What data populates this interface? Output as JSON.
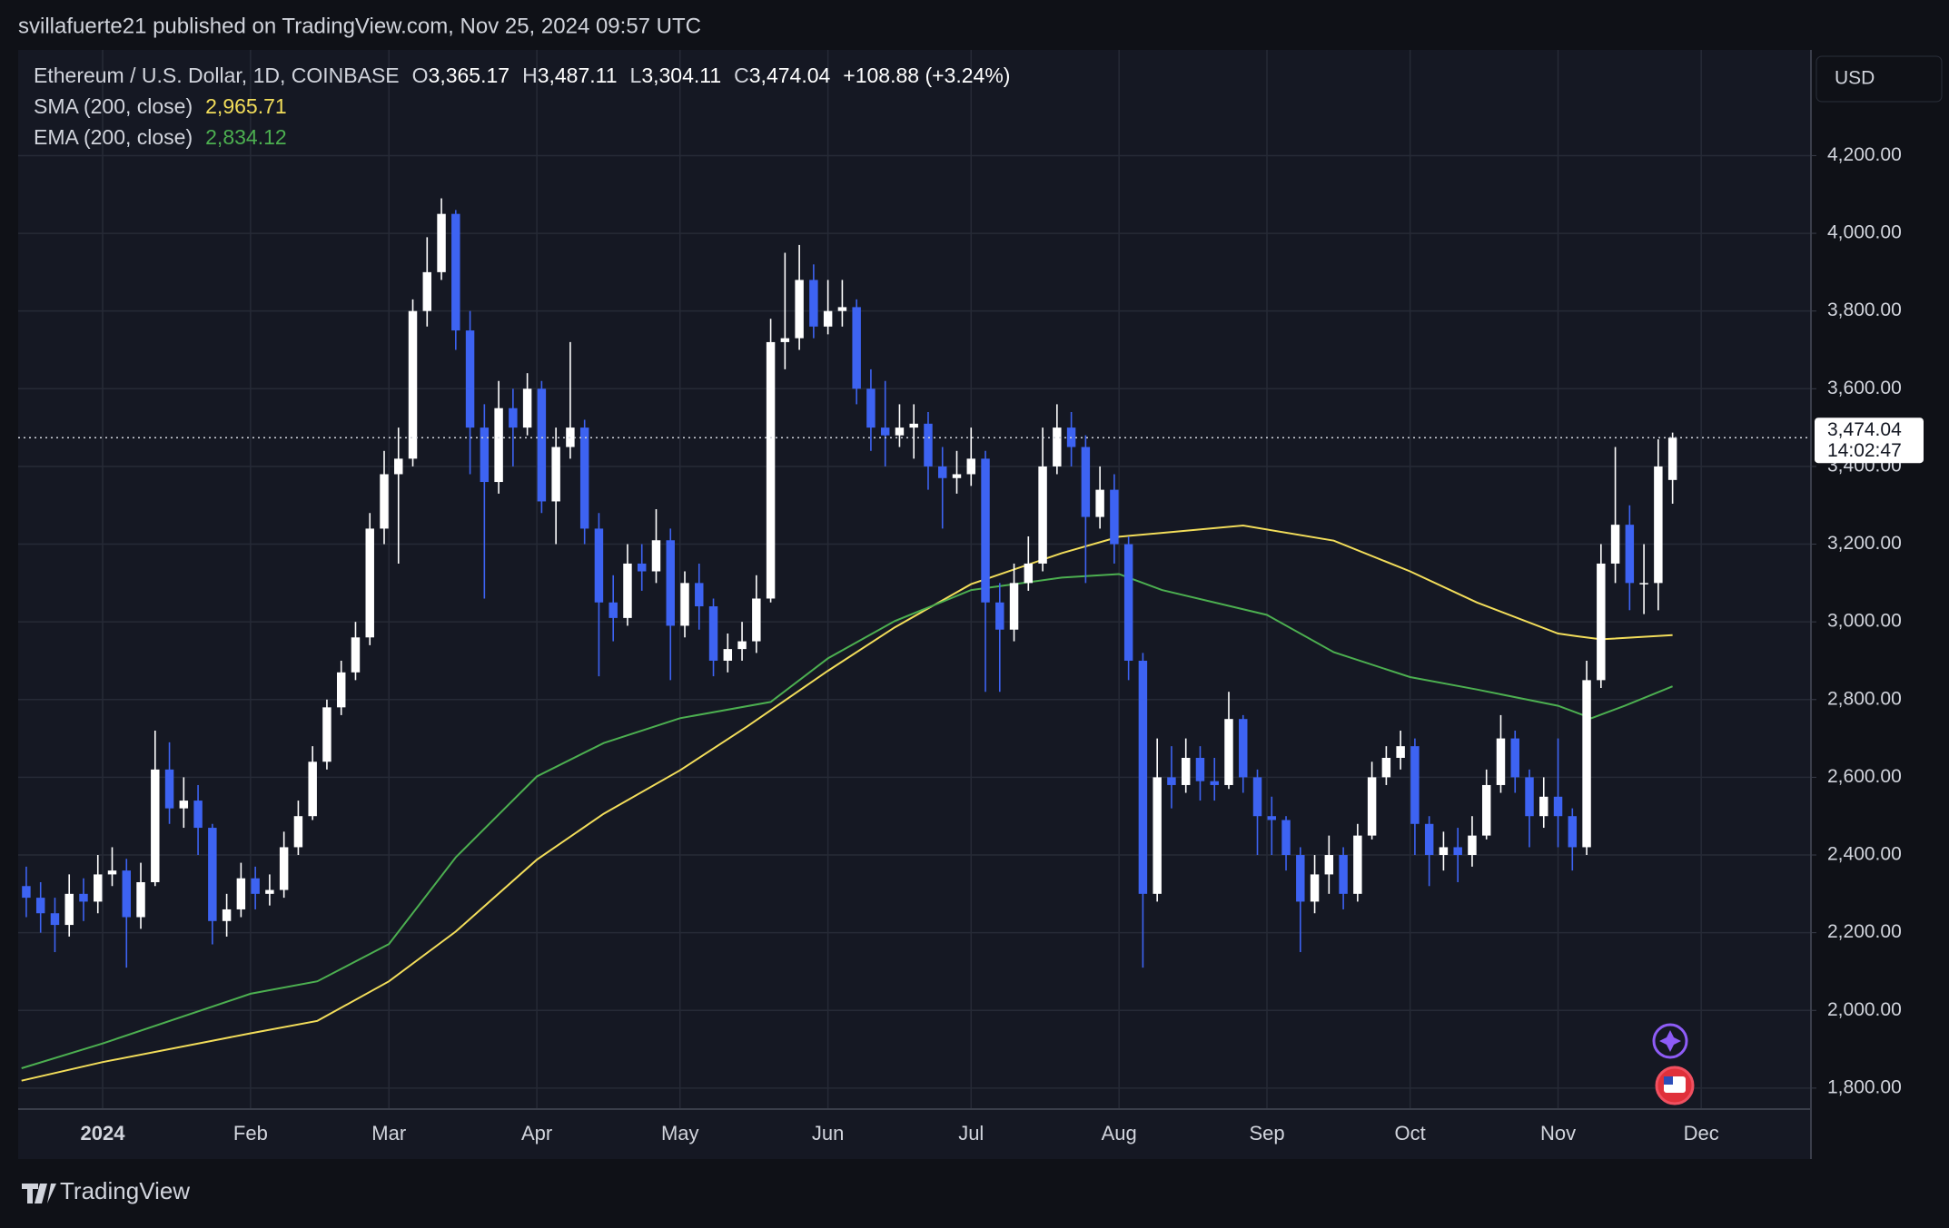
{
  "header": {
    "text": "svillafuerte21 published on TradingView.com, Nov 25, 2024 09:57 UTC"
  },
  "footer": {
    "brand": "TradingView"
  },
  "chart_data": {
    "type": "candlestick",
    "symbol": "Ethereum / U.S. Dollar, 1D, COINBASE",
    "ohlc_labels": [
      {
        "key": "O",
        "value": "3,365.17"
      },
      {
        "key": "H",
        "value": "3,487.11"
      },
      {
        "key": "L",
        "value": "3,304.11"
      },
      {
        "key": "C",
        "value": "3,474.04"
      }
    ],
    "change": "+108.88 (+3.24%)",
    "currency": "USD",
    "last_price_label": "3,474.04",
    "countdown": "14:02:47",
    "up_color": "#ffffff",
    "down_color": "#3d63f2",
    "grid": true,
    "xlim": [
      -17.7,
      358
    ],
    "ylim": [
      1746,
      4472
    ],
    "xticks": [
      {
        "value": 0,
        "label": "2024"
      },
      {
        "value": 31,
        "label": "Feb"
      },
      {
        "value": 60,
        "label": "Mar"
      },
      {
        "value": 91,
        "label": "Apr"
      },
      {
        "value": 121,
        "label": "May"
      },
      {
        "value": 152,
        "label": "Jun"
      },
      {
        "value": 182,
        "label": "Jul"
      },
      {
        "value": 213,
        "label": "Aug"
      },
      {
        "value": 244,
        "label": "Sep"
      },
      {
        "value": 274,
        "label": "Oct"
      },
      {
        "value": 305,
        "label": "Nov"
      },
      {
        "value": 335,
        "label": "Dec"
      }
    ],
    "yticks": [
      {
        "value": 1800,
        "label": "1,800.00"
      },
      {
        "value": 2000,
        "label": "2,000.00"
      },
      {
        "value": 2200,
        "label": "2,200.00"
      },
      {
        "value": 2400,
        "label": "2,400.00"
      },
      {
        "value": 2600,
        "label": "2,600.00"
      },
      {
        "value": 2800,
        "label": "2,800.00"
      },
      {
        "value": 3000,
        "label": "3,000.00"
      },
      {
        "value": 3200,
        "label": "3,200.00"
      },
      {
        "value": 3400,
        "label": "3,400.00"
      },
      {
        "value": 3600,
        "label": "3,600.00"
      },
      {
        "value": 3800,
        "label": "3,800.00"
      },
      {
        "value": 4000,
        "label": "4,000.00"
      },
      {
        "value": 4200,
        "label": "4,200.00"
      }
    ],
    "x": [
      -16,
      -13,
      -10,
      -7,
      -4,
      -1,
      2,
      5,
      8,
      11,
      14,
      17,
      20,
      23,
      26,
      29,
      32,
      35,
      38,
      41,
      44,
      47,
      50,
      53,
      56,
      59,
      62,
      65,
      68,
      71,
      74,
      77,
      80,
      83,
      86,
      89,
      92,
      95,
      98,
      101,
      104,
      107,
      110,
      113,
      116,
      119,
      122,
      125,
      128,
      131,
      134,
      137,
      140,
      143,
      146,
      149,
      152,
      155,
      158,
      161,
      164,
      167,
      170,
      173,
      176,
      179,
      182,
      185,
      188,
      191,
      194,
      197,
      200,
      203,
      206,
      209,
      212,
      215,
      218,
      221,
      224,
      227,
      230,
      233,
      236,
      239,
      242,
      245,
      248,
      251,
      254,
      257,
      260,
      263,
      266,
      269,
      272,
      275,
      278,
      281,
      284,
      287,
      290,
      293,
      296,
      299,
      302,
      305,
      308,
      311,
      314,
      317,
      320,
      323,
      326,
      329
    ],
    "open": [
      2320,
      2290,
      2250,
      2220,
      2300,
      2280,
      2350,
      2360,
      2240,
      2330,
      2620,
      2520,
      2540,
      2470,
      2230,
      2260,
      2340,
      2300,
      2310,
      2420,
      2500,
      2640,
      2780,
      2870,
      2960,
      3240,
      3380,
      3420,
      3800,
      3900,
      4050,
      3750,
      3500,
      3360,
      3550,
      3500,
      3600,
      3310,
      3450,
      3500,
      3240,
      3050,
      3010,
      3150,
      3130,
      3210,
      2990,
      3100,
      3040,
      2900,
      2930,
      2950,
      3060,
      3720,
      3730,
      3880,
      3760,
      3800,
      3810,
      3600,
      3500,
      3480,
      3500,
      3510,
      3400,
      3370,
      3380,
      3420,
      3050,
      2980,
      3100,
      3150,
      3400,
      3500,
      3450,
      3270,
      3340,
      3200,
      2900,
      2300,
      2600,
      2580,
      2650,
      2590,
      2580,
      2750,
      2600,
      2500,
      2490,
      2400,
      2280,
      2350,
      2400,
      2300,
      2450,
      2600,
      2650,
      2680,
      2480,
      2400,
      2420,
      2400,
      2450,
      2580,
      2700,
      2600,
      2500,
      2550,
      2500,
      2420,
      2850,
      3150,
      3250,
      3100,
      3100,
      3365.17
    ],
    "high": [
      2370,
      2330,
      2290,
      2350,
      2340,
      2400,
      2420,
      2390,
      2380,
      2720,
      2690,
      2600,
      2580,
      2480,
      2300,
      2380,
      2370,
      2350,
      2460,
      2540,
      2680,
      2800,
      2900,
      3000,
      3280,
      3440,
      3500,
      3830,
      3990,
      4090,
      4060,
      3800,
      3560,
      3620,
      3600,
      3640,
      3620,
      3500,
      3720,
      3520,
      3280,
      3120,
      3200,
      3200,
      3290,
      3240,
      3130,
      3150,
      3060,
      2970,
      3000,
      3120,
      3780,
      3950,
      3970,
      3920,
      3880,
      3880,
      3830,
      3650,
      3620,
      3560,
      3560,
      3540,
      3450,
      3440,
      3500,
      3440,
      3100,
      3150,
      3220,
      3500,
      3560,
      3540,
      3480,
      3400,
      3380,
      3220,
      2920,
      2700,
      2680,
      2700,
      2680,
      2650,
      2820,
      2760,
      2620,
      2550,
      2500,
      2420,
      2400,
      2450,
      2420,
      2480,
      2640,
      2680,
      2720,
      2700,
      2500,
      2460,
      2470,
      2500,
      2620,
      2760,
      2720,
      2620,
      2600,
      2700,
      2520,
      2900,
      3200,
      3450,
      3300,
      3200,
      3470,
      3487.11
    ],
    "low": [
      2240,
      2200,
      2150,
      2190,
      2230,
      2250,
      2320,
      2110,
      2210,
      2320,
      2480,
      2470,
      2400,
      2170,
      2190,
      2240,
      2260,
      2270,
      2290,
      2400,
      2490,
      2620,
      2760,
      2850,
      2940,
      3200,
      3150,
      3400,
      3760,
      3880,
      3700,
      3380,
      3060,
      3330,
      3400,
      3480,
      3280,
      3200,
      3420,
      3200,
      2860,
      2950,
      2990,
      3080,
      3100,
      2850,
      2960,
      2980,
      2860,
      2870,
      2900,
      2920,
      3050,
      3650,
      3700,
      3730,
      3740,
      3760,
      3560,
      3440,
      3400,
      3450,
      3420,
      3340,
      3240,
      3330,
      3350,
      2820,
      2820,
      2950,
      3080,
      3130,
      3380,
      3400,
      3100,
      3240,
      3150,
      2850,
      2110,
      2280,
      2520,
      2560,
      2540,
      2540,
      2570,
      2560,
      2400,
      2400,
      2360,
      2150,
      2250,
      2300,
      2260,
      2280,
      2440,
      2580,
      2620,
      2400,
      2320,
      2360,
      2330,
      2370,
      2440,
      2560,
      2560,
      2420,
      2470,
      2420,
      2360,
      2400,
      2830,
      3100,
      3030,
      3020,
      3030,
      3304.11
    ],
    "close": [
      2290,
      2250,
      2220,
      2300,
      2280,
      2350,
      2360,
      2240,
      2330,
      2620,
      2520,
      2540,
      2470,
      2230,
      2260,
      2340,
      2300,
      2310,
      2420,
      2500,
      2640,
      2780,
      2870,
      2960,
      3240,
      3380,
      3420,
      3800,
      3900,
      4050,
      3750,
      3500,
      3360,
      3550,
      3500,
      3600,
      3310,
      3450,
      3500,
      3240,
      3050,
      3010,
      3150,
      3130,
      3210,
      2990,
      3100,
      3040,
      2900,
      2930,
      2950,
      3060,
      3720,
      3730,
      3880,
      3760,
      3800,
      3810,
      3600,
      3500,
      3480,
      3500,
      3510,
      3400,
      3370,
      3380,
      3420,
      3050,
      2980,
      3100,
      3150,
      3400,
      3500,
      3450,
      3270,
      3340,
      3200,
      2900,
      2300,
      2600,
      2580,
      2650,
      2590,
      2580,
      2750,
      2600,
      2500,
      2490,
      2400,
      2280,
      2350,
      2400,
      2300,
      2450,
      2600,
      2650,
      2680,
      2480,
      2400,
      2420,
      2400,
      2450,
      2580,
      2700,
      2600,
      2500,
      2550,
      2500,
      2420,
      2850,
      3150,
      3250,
      3100,
      3100,
      3400,
      3474.04
    ],
    "series": [
      {
        "name": "SMA (200, close)",
        "value_label": "2,965.71",
        "color": "#f2dd5a",
        "x": [
          -17,
          0,
          31,
          45,
          60,
          74,
          91,
          105,
          121,
          135,
          152,
          166,
          182,
          201,
          213,
          239,
          258,
          274,
          288,
          305,
          309,
          314,
          329
        ],
        "values": [
          1819,
          1867,
          1941,
          1973,
          2075,
          2203,
          2388,
          2506,
          2618,
          2730,
          2874,
          2986,
          3097,
          3177,
          3219,
          3248,
          3209,
          3130,
          3050,
          2970,
          2963,
          2955,
          2965.71
        ]
      },
      {
        "name": "EMA (200, close)",
        "value_label": "2,834.12",
        "color": "#4caf50",
        "x": [
          -17,
          0,
          31,
          45,
          60,
          74,
          91,
          105,
          121,
          140,
          152,
          166,
          182,
          201,
          213,
          222,
          244,
          258,
          274,
          288,
          305,
          312,
          319,
          329
        ],
        "values": [
          1851,
          1915,
          2043,
          2075,
          2171,
          2394,
          2602,
          2688,
          2752,
          2794,
          2906,
          3002,
          3082,
          3114,
          3123,
          3082,
          3018,
          2922,
          2858,
          2826,
          2784,
          2752,
          2784,
          2834.12
        ]
      }
    ]
  }
}
